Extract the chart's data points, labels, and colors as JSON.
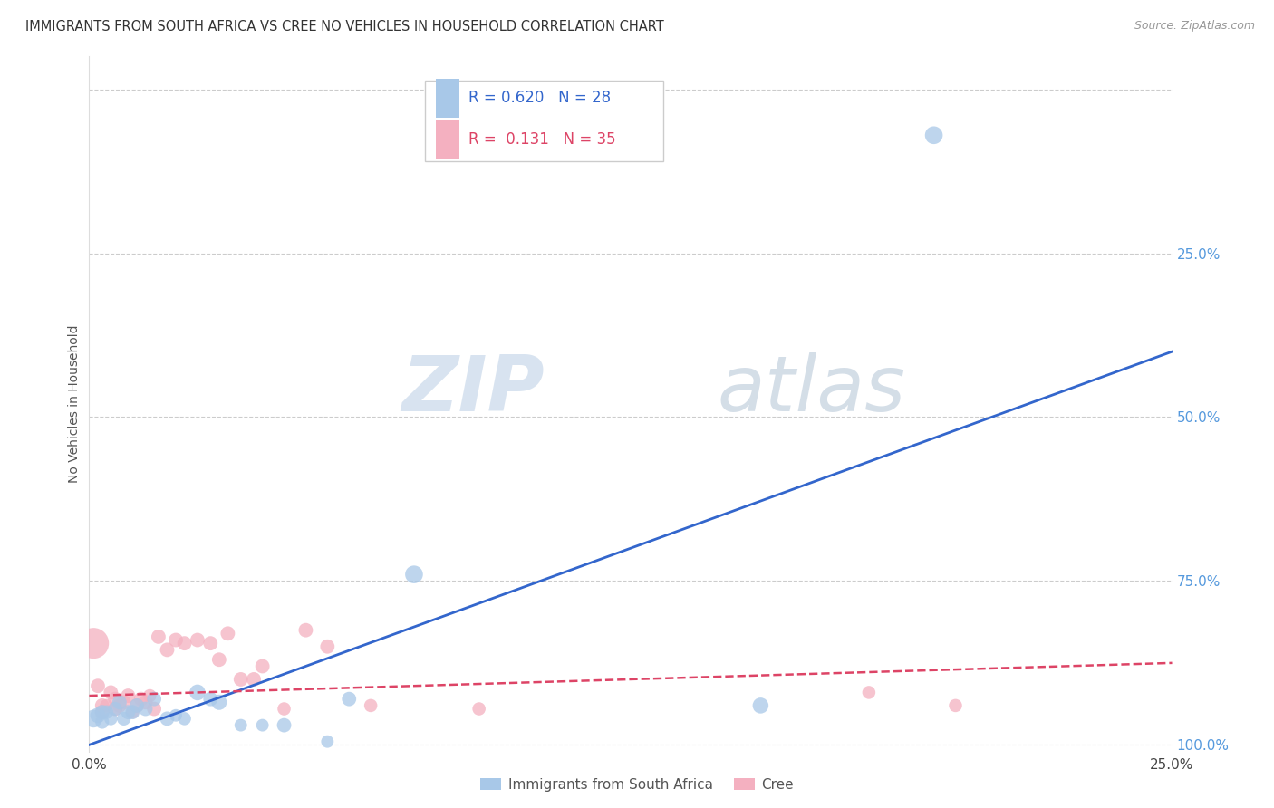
{
  "title": "IMMIGRANTS FROM SOUTH AFRICA VS CREE NO VEHICLES IN HOUSEHOLD CORRELATION CHART",
  "source": "Source: ZipAtlas.com",
  "ylabel": "No Vehicles in Household",
  "xlim": [
    0.0,
    0.25
  ],
  "ylim": [
    -0.01,
    1.05
  ],
  "yticks": [
    0.0,
    0.25,
    0.5,
    0.75,
    1.0
  ],
  "ytick_labels_right": [
    "100.0%",
    "75.0%",
    "50.0%",
    "25.0%",
    ""
  ],
  "ytick_vals": [
    1.0,
    0.75,
    0.5,
    0.25,
    0.0
  ],
  "xticks": [
    0.0,
    0.05,
    0.1,
    0.15,
    0.2,
    0.25
  ],
  "xtick_labels": [
    "0.0%",
    "",
    "",
    "",
    "",
    "25.0%"
  ],
  "R_blue": 0.62,
  "N_blue": 28,
  "R_pink": 0.131,
  "N_pink": 35,
  "color_blue": "#a8c8e8",
  "color_pink": "#f4b0c0",
  "line_blue": "#3366cc",
  "line_pink": "#dd4466",
  "watermark_zip": "ZIP",
  "watermark_atlas": "atlas",
  "legend_label_blue": "Immigrants from South Africa",
  "legend_label_pink": "Cree",
  "blue_points_x": [
    0.001,
    0.002,
    0.003,
    0.003,
    0.004,
    0.005,
    0.006,
    0.007,
    0.008,
    0.009,
    0.01,
    0.011,
    0.013,
    0.015,
    0.018,
    0.02,
    0.022,
    0.025,
    0.028,
    0.03,
    0.035,
    0.04,
    0.045,
    0.055,
    0.06,
    0.075,
    0.155,
    0.195
  ],
  "blue_points_y": [
    0.04,
    0.045,
    0.035,
    0.05,
    0.05,
    0.04,
    0.055,
    0.065,
    0.04,
    0.05,
    0.05,
    0.06,
    0.055,
    0.07,
    0.04,
    0.045,
    0.04,
    0.08,
    0.07,
    0.065,
    0.03,
    0.03,
    0.03,
    0.005,
    0.07,
    0.26,
    0.06,
    0.93
  ],
  "blue_sizes": [
    200,
    150,
    120,
    130,
    120,
    110,
    120,
    130,
    120,
    130,
    130,
    130,
    130,
    130,
    130,
    100,
    110,
    160,
    130,
    150,
    100,
    100,
    130,
    100,
    130,
    200,
    160,
    200
  ],
  "pink_points_x": [
    0.001,
    0.002,
    0.003,
    0.003,
    0.004,
    0.005,
    0.006,
    0.006,
    0.007,
    0.008,
    0.009,
    0.01,
    0.011,
    0.012,
    0.013,
    0.014,
    0.015,
    0.016,
    0.018,
    0.02,
    0.022,
    0.025,
    0.028,
    0.03,
    0.032,
    0.035,
    0.038,
    0.04,
    0.045,
    0.05,
    0.055,
    0.065,
    0.09,
    0.18,
    0.2
  ],
  "pink_points_y": [
    0.155,
    0.09,
    0.06,
    0.05,
    0.06,
    0.08,
    0.07,
    0.055,
    0.06,
    0.065,
    0.075,
    0.05,
    0.06,
    0.07,
    0.065,
    0.075,
    0.055,
    0.165,
    0.145,
    0.16,
    0.155,
    0.16,
    0.155,
    0.13,
    0.17,
    0.1,
    0.1,
    0.12,
    0.055,
    0.175,
    0.15,
    0.06,
    0.055,
    0.08,
    0.06
  ],
  "pink_sizes": [
    600,
    130,
    130,
    130,
    110,
    130,
    130,
    130,
    130,
    130,
    130,
    110,
    130,
    130,
    130,
    110,
    130,
    130,
    130,
    130,
    130,
    130,
    130,
    130,
    130,
    130,
    130,
    130,
    110,
    130,
    130,
    110,
    110,
    110,
    110
  ],
  "blue_line_x": [
    0.0,
    0.25
  ],
  "blue_line_y": [
    0.0,
    0.6
  ],
  "pink_line_x": [
    0.0,
    0.25
  ],
  "pink_line_y": [
    0.075,
    0.125
  ],
  "grid_color": "#cccccc",
  "background_color": "#ffffff"
}
